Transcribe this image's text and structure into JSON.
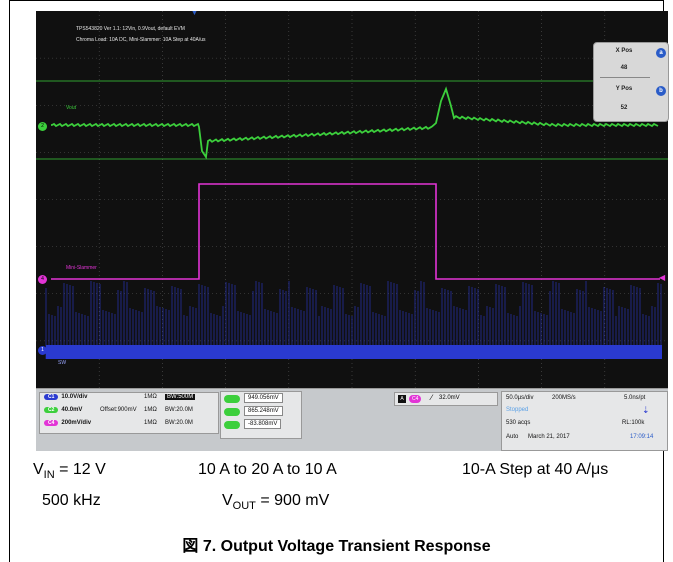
{
  "scope": {
    "header_line1": "TPS543820 Ver 1.1: 12Vin, 0.9Vout,  default EVM",
    "header_line2": "Chroma Load: 10A DC, Mini-Slammer: 10A Step at 40A/us",
    "trace_labels": {
      "vout": "Vout",
      "slammer": "Mini-Slammer",
      "sw": "SW"
    },
    "xpos_label": "X Pos",
    "xpos_value": "48",
    "xpos_badge": "a",
    "ypos_label": "Y Pos",
    "ypos_value": "52",
    "ypos_badge": "b",
    "colors": {
      "ch1": "#2a3ad0",
      "ch2": "#3ccf3c",
      "ch4": "#e234d6",
      "bg": "#101010"
    },
    "channels": [
      {
        "id": "C1",
        "scale": "10.0V/div",
        "imp": "1MΩ",
        "bw": "BW:500M",
        "color": "#2a3ad0"
      },
      {
        "id": "C2",
        "scale": "40.0mV",
        "offset": "Offset:900mV",
        "imp": "1MΩ",
        "bw": "BW:20.0M",
        "color": "#3ccf3c"
      },
      {
        "id": "C4",
        "scale": "200mV/div",
        "imp": "1MΩ",
        "bw": "BW:20.0M",
        "color": "#e234d6"
      }
    ],
    "measurements": [
      "949.056mV",
      "865.248mV",
      "-83.808mV"
    ],
    "trigger": {
      "mode": "A",
      "channel": "C4",
      "level": "32.0mV"
    },
    "acq": {
      "timebase": "50.0µs/div",
      "rate": "200MS/s",
      "pt": "5.0ns/pt",
      "state": "Stopped",
      "acqs": "530 acqs",
      "rl": "RL:100k",
      "mode": "Auto",
      "date": "March 21, 2017",
      "time": "17:09:14"
    }
  },
  "captions": {
    "vin_prefix": "V",
    "vin_sub": "IN",
    "vin_suffix": " = 12 V",
    "freq": "500 kHz",
    "step_range": "10 A to 20 A to 10 A",
    "vout_prefix": "V",
    "vout_sub": "OUT",
    "vout_suffix": " = 900 mV",
    "slew": "10-A Step at 40 A/μs",
    "figure": "図 7. Output Voltage Transient Response"
  }
}
